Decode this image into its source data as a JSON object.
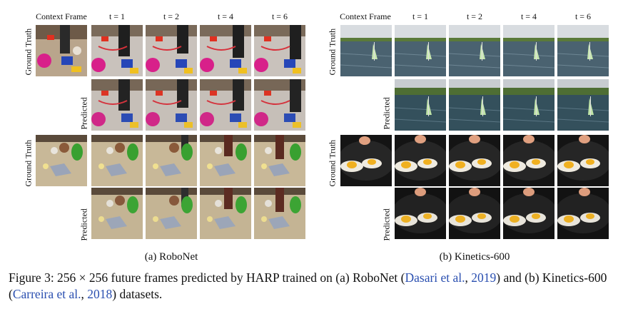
{
  "robonet": {
    "headers": [
      "Context Frame",
      "t = 1",
      "t = 2",
      "t = 4",
      "t = 6"
    ],
    "row_labels": [
      "Ground Truth",
      "Predicted",
      "Ground Truth",
      "Predicted"
    ],
    "subcaption": "(a) RoboNet"
  },
  "kinetics": {
    "headers": [
      "Context Frame",
      "t = 1",
      "t = 2",
      "t = 4",
      "t = 6"
    ],
    "row_labels": [
      "Ground Truth",
      "Predicted",
      "Ground Truth",
      "Predicted"
    ],
    "subcaption": "(b) Kinetics-600"
  },
  "caption": {
    "prefix": "Figure 3: 256 × 256 future frames predicted by HARP trained on (a) RoboNet (",
    "cite1_author": "Dasari et al.",
    "sep1": ", ",
    "cite1_year": "2019",
    "mid": ") and (b) Kinetics-600 (",
    "cite2_author": "Carreira et al.",
    "sep2": ", ",
    "cite2_year": "2018",
    "suffix": ") datasets."
  }
}
